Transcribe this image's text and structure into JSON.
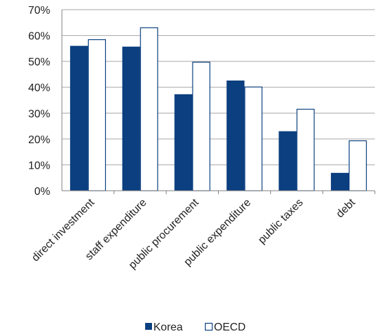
{
  "chart_data": {
    "type": "bar",
    "categories": [
      "direct investment",
      "staff expenditure",
      "public procurement",
      "public expenditure",
      "public taxes",
      "debt"
    ],
    "series": [
      {
        "name": "Korea",
        "values": [
          56,
          55.7,
          37.3,
          42.6,
          23,
          6.9
        ],
        "color": "#0b3f7f"
      },
      {
        "name": "OECD",
        "values": [
          58.4,
          63,
          49.7,
          40.1,
          31.5,
          19.3
        ],
        "color": "#ffffff"
      }
    ],
    "ylim": [
      0,
      70
    ],
    "yticks": [
      "0%",
      "10%",
      "20%",
      "30%",
      "40%",
      "50%",
      "60%",
      "70%"
    ],
    "ytick_values": [
      0,
      10,
      20,
      30,
      40,
      50,
      60,
      70
    ],
    "grid": true,
    "legend": "bottom",
    "colors": {
      "korea": "#0b3f7f",
      "oecd_fill": "#ffffff",
      "oecd_stroke": "#0b3f7f",
      "grid": "#a6a6a6",
      "axis": "#7f7f7f"
    }
  }
}
